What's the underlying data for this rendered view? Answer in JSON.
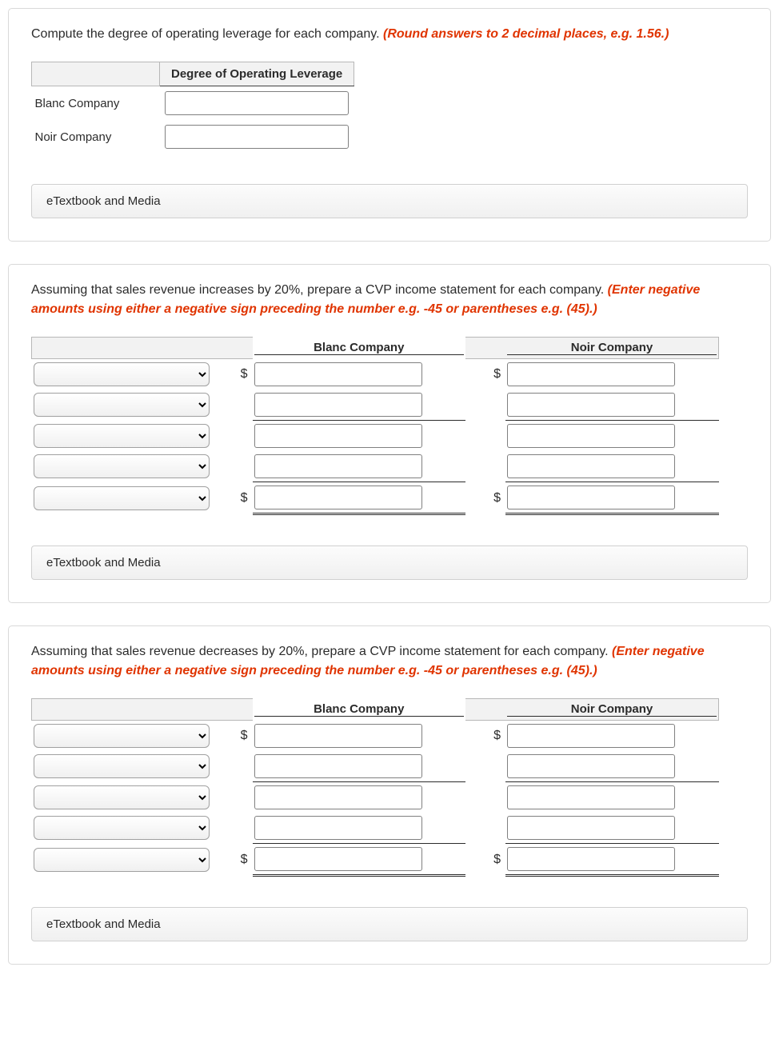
{
  "s1": {
    "prompt_a": "Compute the degree of operating leverage for each company. ",
    "prompt_b": "(Round answers to 2 decimal places, e.g. 1.56.)",
    "header": "Degree of Operating Leverage",
    "rows": [
      "Blanc Company",
      "Noir Company"
    ],
    "etext": "eTextbook and Media"
  },
  "s2": {
    "prompt_a": "Assuming that sales revenue increases by 20%, prepare a CVP income statement for each company. ",
    "prompt_b": "(Enter negative amounts using either a negative sign preceding the number e.g. -45 or parentheses e.g. (45).)",
    "col1": "Blanc Company",
    "col2": "Noir Company",
    "currency": "$",
    "etext": "eTextbook and Media"
  },
  "s3": {
    "prompt_a": "Assuming that sales revenue decreases by 20%, prepare a CVP income statement for each company. ",
    "prompt_b": "(Enter negative amounts using either a negative sign preceding the number e.g. -45 or parentheses e.g. (45).)",
    "col1": "Blanc Company",
    "col2": "Noir Company",
    "currency": "$",
    "etext": "eTextbook and Media"
  },
  "styles": {
    "font_family": "system-ui",
    "prompt_fontsize": 16,
    "accent_red": "#e03400",
    "border_gray": "#d9d9d9",
    "header_bg": "#f2f2f2",
    "header_border": "#b7b7b7",
    "input_border": "#808080",
    "text_color": "#2b2b2b"
  }
}
